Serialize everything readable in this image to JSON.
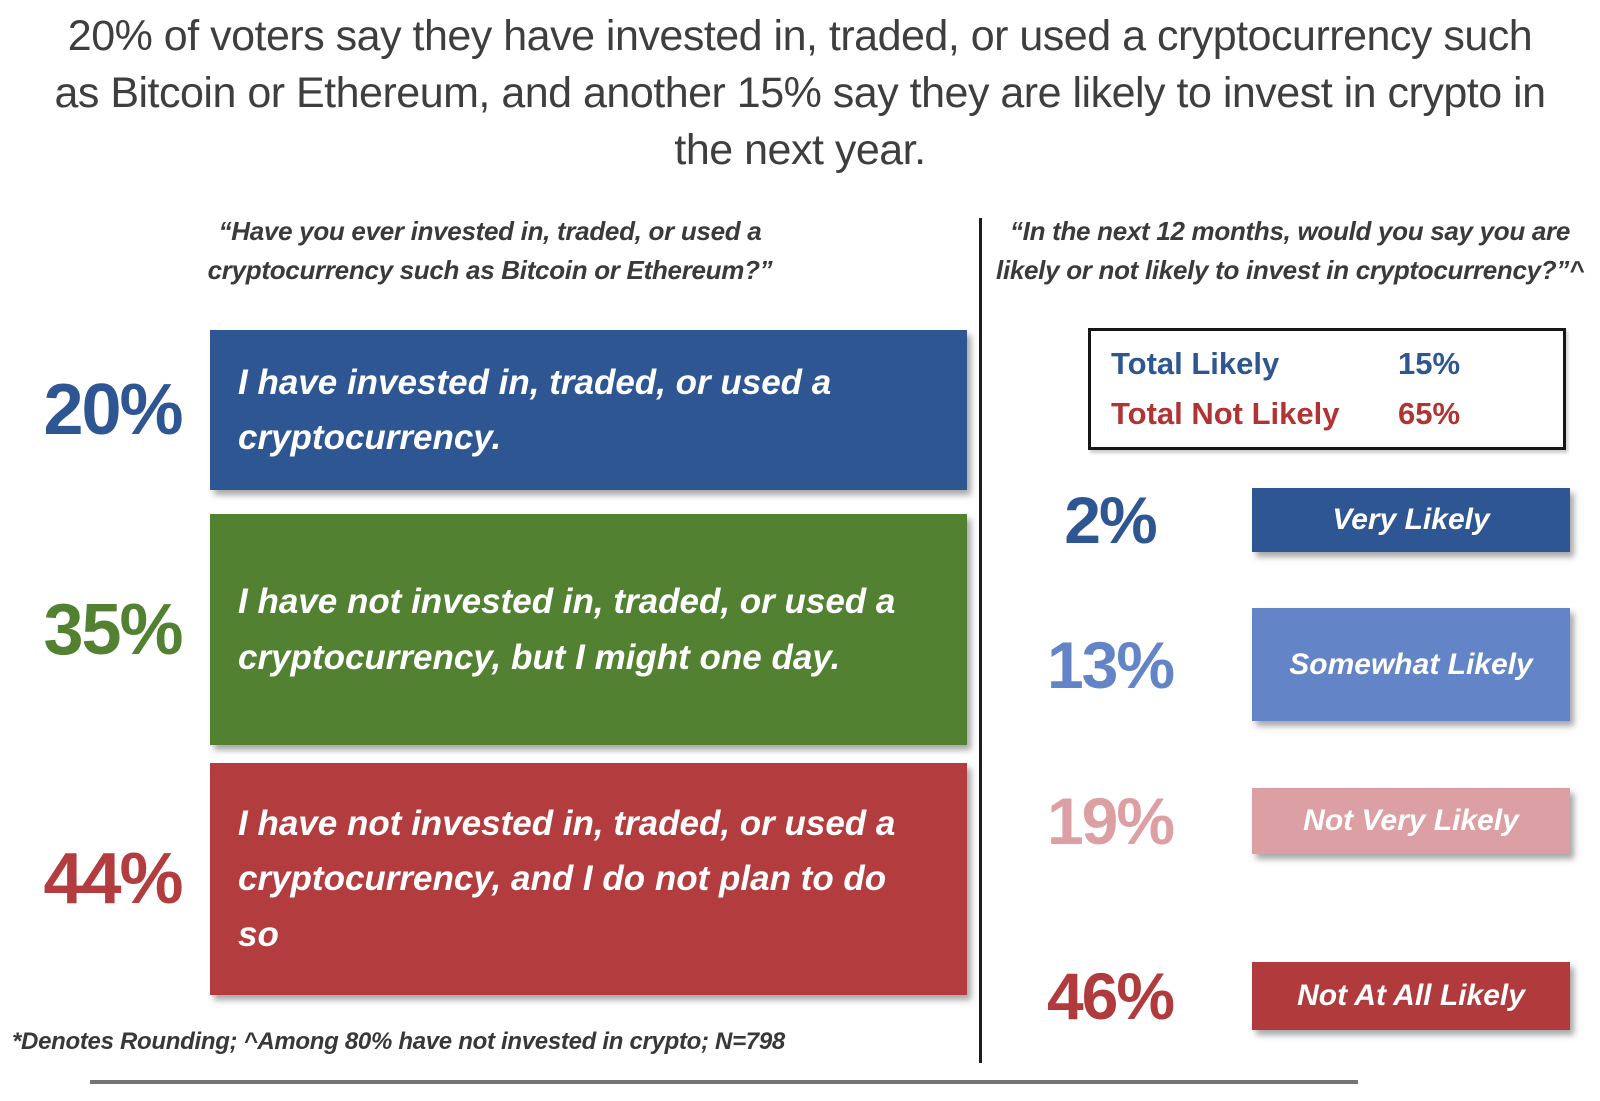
{
  "title": "20% of voters say they have invested in, traded, or used a cryptocurrency such as Bitcoin or Ethereum, and another 15% say they are likely to invest in crypto in the next year.",
  "footnote": "*Denotes Rounding; ^Among 80% have not invested in crypto; N=798",
  "chart_data": [
    {
      "type": "bar",
      "orientation": "horizontal",
      "title": "“Have you ever invested in, traded, or used a cryptocurrency such as Bitcoin or Ethereum?”",
      "categories": [
        "I have invested in, traded, or used a cryptocurrency.",
        "I have not invested in, traded, or used a cryptocurrency, but I might one day.",
        "I have not invested in, traded, or used a cryptocurrency, and I do not plan to do so"
      ],
      "values": [
        20,
        35,
        44
      ],
      "value_labels": [
        "20%",
        "35%",
        "44%"
      ],
      "colors": [
        "#2e5693",
        "#538132",
        "#b23c3e"
      ],
      "legend": "none",
      "grid": false
    },
    {
      "type": "bar",
      "orientation": "horizontal",
      "title": "“In the next 12 months, would you say you are likely or not likely to invest in cryptocurrency?”^",
      "categories": [
        "Very Likely",
        "Somewhat Likely",
        "Not Very Likely",
        "Not At All Likely"
      ],
      "values": [
        2,
        13,
        19,
        46
      ],
      "value_labels": [
        "2%",
        "13%",
        "19%",
        "46%"
      ],
      "colors": [
        "#2e5693",
        "#6384c6",
        "#dca0a4",
        "#b03a3c"
      ],
      "legend": "none",
      "grid": false,
      "summary": {
        "rows": [
          {
            "label": "Total Likely",
            "value": "15%",
            "color": "#2e5693"
          },
          {
            "label": "Total Not Likely",
            "value": "65%",
            "color": "#b03434"
          }
        ]
      }
    }
  ]
}
